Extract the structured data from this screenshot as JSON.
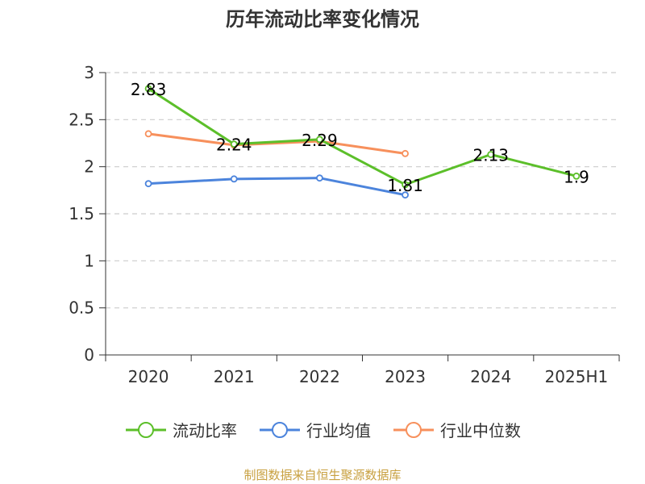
{
  "chart_data": {
    "type": "line",
    "title": "历年流动比率变化情况",
    "categories": [
      "2020",
      "2021",
      "2022",
      "2023",
      "2024",
      "2025H1"
    ],
    "ylim": [
      0,
      3
    ],
    "yticks": [
      "0",
      "0.5",
      "1",
      "1.5",
      "2",
      "2.5",
      "3"
    ],
    "grid": true,
    "legend_position": "bottom",
    "series": [
      {
        "name": "流动比率",
        "color": "#5cbf2a",
        "values": [
          2.83,
          2.24,
          2.29,
          1.81,
          2.13,
          1.9
        ],
        "labels": [
          "2.83",
          "2.24",
          "2.29",
          "1.81",
          "2.13",
          "1.9"
        ]
      },
      {
        "name": "行业均值",
        "color": "#4c84dc",
        "values": [
          1.82,
          1.87,
          1.88,
          1.7,
          null,
          null
        ]
      },
      {
        "name": "行业中位数",
        "color": "#f7905c",
        "values": [
          2.35,
          2.23,
          2.27,
          2.14,
          null,
          null
        ]
      }
    ]
  },
  "footer": {
    "source": "制图数据来自恒生聚源数据库"
  }
}
